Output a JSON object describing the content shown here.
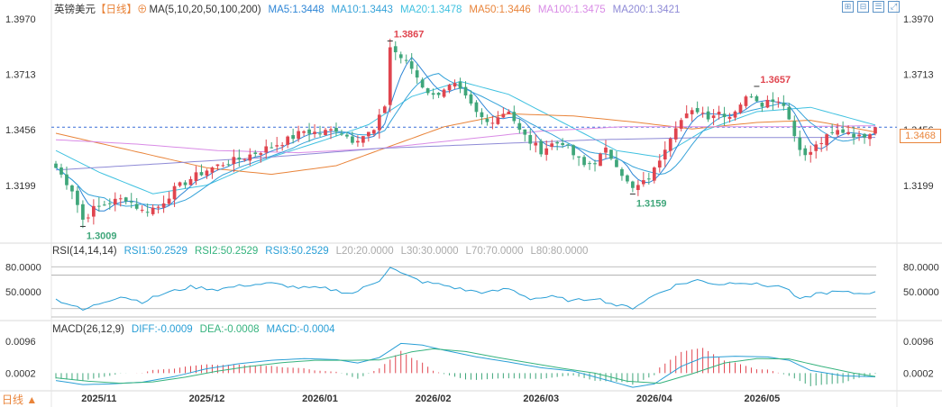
{
  "header": {
    "symbol": "英镑美元",
    "period_label": "【日线】",
    "ma_legend": "MA(5,10,20,50,100,200)",
    "ma_values": [
      {
        "text": "MA5:1.3448",
        "color": "#2f86d6"
      },
      {
        "text": "MA10:1.3443",
        "color": "#36a3d9"
      },
      {
        "text": "MA20:1.3478",
        "color": "#3fc1e0"
      },
      {
        "text": "MA50:1.3446",
        "color": "#e9843a"
      },
      {
        "text": "MA100:1.3475",
        "color": "#d98be6"
      },
      {
        "text": "MA200:1.3421",
        "color": "#8e8ad6"
      }
    ],
    "toolbar_icons": [
      "zoom-in-icon",
      "zoom-out-icon",
      "chart-settings-icon",
      "expand-icon"
    ]
  },
  "rsi_legend": {
    "title": "RSI(14,14,14)",
    "values": [
      {
        "text": "RSI1:50.2529",
        "color": "#2a9fd6"
      },
      {
        "text": "RSI2:50.2529",
        "color": "#36b37e"
      },
      {
        "text": "RSI3:50.2529",
        "color": "#2a9fd6"
      },
      {
        "text": "L20:20.0000",
        "color": "#aaaaaa"
      },
      {
        "text": "L30:30.0000",
        "color": "#aaaaaa"
      },
      {
        "text": "L70:70.0000",
        "color": "#aaaaaa"
      },
      {
        "text": "L80:80.0000",
        "color": "#aaaaaa"
      }
    ]
  },
  "macd_legend": {
    "title": "MACD(26,12,9)",
    "values": [
      {
        "text": "DIFF:-0.0009",
        "color": "#2a9fd6"
      },
      {
        "text": "DEA:-0.0008",
        "color": "#36b37e"
      },
      {
        "text": "MACD:-0.0004",
        "color": "#2a9fd6"
      }
    ]
  },
  "bottom_period_label": "日线 ▲",
  "current_price_tag": "1.3468",
  "colors": {
    "up": "#e0454f",
    "down": "#3fa67a",
    "accent": "#e9843a"
  },
  "chart_data": {
    "type": "candlestick",
    "price_axis": {
      "ticks": [
        1.397,
        1.3713,
        1.3456,
        1.3199
      ],
      "tick_labels": [
        "1.3970",
        "1.3713",
        "1.3456",
        "1.3199"
      ],
      "range": [
        1.2965,
        1.399
      ]
    },
    "rsi_axis": {
      "ticks": [
        80,
        50
      ],
      "tick_labels": [
        "80.0000",
        "50.0000"
      ],
      "range": [
        20,
        90
      ]
    },
    "macd_axis": {
      "ticks": [
        0.0096,
        0.0002
      ],
      "tick_labels": [
        "0.0096",
        "0.0002"
      ],
      "range": [
        -0.0045,
        0.0115
      ]
    },
    "x_labels": [
      {
        "label": "2025/11",
        "index": 8
      },
      {
        "label": "2025/12",
        "index": 28
      },
      {
        "label": "2026/01",
        "index": 49
      },
      {
        "label": "2026/02",
        "index": 70
      },
      {
        "label": "2026/03",
        "index": 90
      },
      {
        "label": "2026/04",
        "index": 111
      },
      {
        "label": "2026/05",
        "index": 131
      }
    ],
    "annotations": [
      {
        "text": "1.3009",
        "value": 1.3009,
        "index": 5,
        "type": "low"
      },
      {
        "text": "1.3867",
        "value": 1.3867,
        "index": 62,
        "type": "high"
      },
      {
        "text": "1.3159",
        "value": 1.3159,
        "index": 107,
        "type": "low"
      },
      {
        "text": "1.3657",
        "value": 1.3657,
        "index": 130,
        "type": "high"
      }
    ],
    "last_price": 1.3468,
    "close_path": [
      [
        0,
        1.328
      ],
      [
        3,
        1.318
      ],
      [
        5,
        1.304
      ],
      [
        7,
        1.309
      ],
      [
        10,
        1.312
      ],
      [
        13,
        1.314
      ],
      [
        16,
        1.308
      ],
      [
        19,
        1.31
      ],
      [
        22,
        1.318
      ],
      [
        25,
        1.323
      ],
      [
        28,
        1.327
      ],
      [
        31,
        1.33
      ],
      [
        34,
        1.332
      ],
      [
        37,
        1.335
      ],
      [
        40,
        1.338
      ],
      [
        43,
        1.341
      ],
      [
        46,
        1.345
      ],
      [
        49,
        1.344
      ],
      [
        52,
        1.346
      ],
      [
        55,
        1.341
      ],
      [
        57,
        1.343
      ],
      [
        59,
        1.345
      ],
      [
        61,
        1.357
      ],
      [
        62,
        1.384
      ],
      [
        64,
        1.379
      ],
      [
        66,
        1.374
      ],
      [
        68,
        1.366
      ],
      [
        70,
        1.361
      ],
      [
        72,
        1.365
      ],
      [
        74,
        1.366
      ],
      [
        76,
        1.36
      ],
      [
        78,
        1.353
      ],
      [
        80,
        1.349
      ],
      [
        82,
        1.352
      ],
      [
        84,
        1.355
      ],
      [
        86,
        1.345
      ],
      [
        88,
        1.34
      ],
      [
        90,
        1.336
      ],
      [
        92,
        1.339
      ],
      [
        94,
        1.34
      ],
      [
        96,
        1.334
      ],
      [
        98,
        1.329
      ],
      [
        100,
        1.331
      ],
      [
        102,
        1.336
      ],
      [
        104,
        1.33
      ],
      [
        106,
        1.321
      ],
      [
        107,
        1.318
      ],
      [
        109,
        1.321
      ],
      [
        111,
        1.327
      ],
      [
        113,
        1.338
      ],
      [
        115,
        1.348
      ],
      [
        117,
        1.352
      ],
      [
        119,
        1.355
      ],
      [
        121,
        1.352
      ],
      [
        123,
        1.354
      ],
      [
        125,
        1.352
      ],
      [
        127,
        1.358
      ],
      [
        129,
        1.362
      ],
      [
        131,
        1.358
      ],
      [
        133,
        1.36
      ],
      [
        135,
        1.358
      ],
      [
        137,
        1.343
      ],
      [
        139,
        1.333
      ],
      [
        141,
        1.338
      ],
      [
        143,
        1.342
      ],
      [
        145,
        1.345
      ],
      [
        147,
        1.345
      ],
      [
        149,
        1.342
      ],
      [
        151,
        1.345
      ],
      [
        152,
        1.3468
      ]
    ],
    "ma_paths": [
      {
        "name": "MA20",
        "color": "#3fc1e0",
        "points": [
          [
            0,
            1.336
          ],
          [
            8,
            1.326
          ],
          [
            18,
            1.316
          ],
          [
            28,
            1.32
          ],
          [
            40,
            1.333
          ],
          [
            50,
            1.341
          ],
          [
            58,
            1.348
          ],
          [
            66,
            1.361
          ],
          [
            75,
            1.368
          ],
          [
            84,
            1.362
          ],
          [
            94,
            1.349
          ],
          [
            104,
            1.336
          ],
          [
            112,
            1.333
          ],
          [
            120,
            1.345
          ],
          [
            130,
            1.354
          ],
          [
            140,
            1.356
          ],
          [
            152,
            1.3478
          ]
        ]
      },
      {
        "name": "MA50",
        "color": "#e9843a",
        "points": [
          [
            0,
            1.344
          ],
          [
            14,
            1.336
          ],
          [
            28,
            1.328
          ],
          [
            40,
            1.325
          ],
          [
            52,
            1.329
          ],
          [
            62,
            1.338
          ],
          [
            72,
            1.347
          ],
          [
            84,
            1.353
          ],
          [
            96,
            1.352
          ],
          [
            108,
            1.349
          ],
          [
            118,
            1.346
          ],
          [
            130,
            1.349
          ],
          [
            140,
            1.35
          ],
          [
            152,
            1.3446
          ]
        ]
      },
      {
        "name": "MA100",
        "color": "#d98be6",
        "points": [
          [
            0,
            1.341
          ],
          [
            15,
            1.339
          ],
          [
            30,
            1.336
          ],
          [
            45,
            1.335
          ],
          [
            60,
            1.337
          ],
          [
            75,
            1.341
          ],
          [
            90,
            1.345
          ],
          [
            105,
            1.347
          ],
          [
            120,
            1.347
          ],
          [
            135,
            1.347
          ],
          [
            152,
            1.3475
          ]
        ]
      },
      {
        "name": "MA200",
        "color": "#8e8ad6",
        "points": [
          [
            0,
            1.327
          ],
          [
            20,
            1.33
          ],
          [
            40,
            1.333
          ],
          [
            60,
            1.337
          ],
          [
            80,
            1.339
          ],
          [
            100,
            1.341
          ],
          [
            120,
            1.342
          ],
          [
            152,
            1.3421
          ]
        ]
      }
    ],
    "rsi_path": [
      [
        0,
        41
      ],
      [
        3,
        34
      ],
      [
        5,
        28
      ],
      [
        8,
        36
      ],
      [
        12,
        45
      ],
      [
        16,
        38
      ],
      [
        20,
        48
      ],
      [
        25,
        56
      ],
      [
        30,
        53
      ],
      [
        35,
        58
      ],
      [
        40,
        60
      ],
      [
        45,
        55
      ],
      [
        50,
        54
      ],
      [
        55,
        48
      ],
      [
        60,
        64
      ],
      [
        62,
        80
      ],
      [
        64,
        72
      ],
      [
        68,
        62
      ],
      [
        72,
        58
      ],
      [
        76,
        52
      ],
      [
        80,
        49
      ],
      [
        84,
        54
      ],
      [
        88,
        42
      ],
      [
        92,
        44
      ],
      [
        96,
        39
      ],
      [
        100,
        43
      ],
      [
        104,
        34
      ],
      [
        107,
        31
      ],
      [
        111,
        46
      ],
      [
        115,
        58
      ],
      [
        119,
        64
      ],
      [
        123,
        59
      ],
      [
        127,
        62
      ],
      [
        131,
        58
      ],
      [
        135,
        56
      ],
      [
        138,
        40
      ],
      [
        141,
        48
      ],
      [
        145,
        50
      ],
      [
        149,
        48
      ],
      [
        152,
        50.2529
      ]
    ],
    "macd_diff_path": [
      [
        0,
        -0.002
      ],
      [
        5,
        -0.0032
      ],
      [
        10,
        -0.003
      ],
      [
        16,
        -0.0025
      ],
      [
        22,
        -0.0008
      ],
      [
        28,
        0.0015
      ],
      [
        34,
        0.003
      ],
      [
        40,
        0.004
      ],
      [
        46,
        0.0045
      ],
      [
        52,
        0.0042
      ],
      [
        56,
        0.0032
      ],
      [
        60,
        0.0048
      ],
      [
        64,
        0.009
      ],
      [
        68,
        0.0085
      ],
      [
        72,
        0.007
      ],
      [
        78,
        0.005
      ],
      [
        84,
        0.0035
      ],
      [
        90,
        0.0018
      ],
      [
        96,
        0.0008
      ],
      [
        102,
        -0.0018
      ],
      [
        107,
        -0.004
      ],
      [
        111,
        -0.003
      ],
      [
        116,
        0.0022
      ],
      [
        120,
        0.0048
      ],
      [
        126,
        0.0052
      ],
      [
        132,
        0.005
      ],
      [
        136,
        0.004
      ],
      [
        140,
        0.001
      ],
      [
        146,
        -0.0006
      ],
      [
        152,
        -0.0009
      ]
    ],
    "macd_dea_path": [
      [
        0,
        -0.0012
      ],
      [
        6,
        -0.0022
      ],
      [
        12,
        -0.0028
      ],
      [
        18,
        -0.0024
      ],
      [
        24,
        -0.001
      ],
      [
        30,
        0.0008
      ],
      [
        36,
        0.0022
      ],
      [
        42,
        0.0033
      ],
      [
        48,
        0.004
      ],
      [
        54,
        0.004
      ],
      [
        60,
        0.0041
      ],
      [
        66,
        0.0065
      ],
      [
        70,
        0.0074
      ],
      [
        76,
        0.0066
      ],
      [
        82,
        0.0048
      ],
      [
        88,
        0.0032
      ],
      [
        94,
        0.0016
      ],
      [
        100,
        0.0002
      ],
      [
        106,
        -0.0022
      ],
      [
        112,
        -0.0028
      ],
      [
        118,
        0.0
      ],
      [
        124,
        0.0032
      ],
      [
        130,
        0.0045
      ],
      [
        136,
        0.0044
      ],
      [
        142,
        0.0022
      ],
      [
        148,
        0.0002
      ],
      [
        152,
        -0.0008
      ]
    ]
  }
}
